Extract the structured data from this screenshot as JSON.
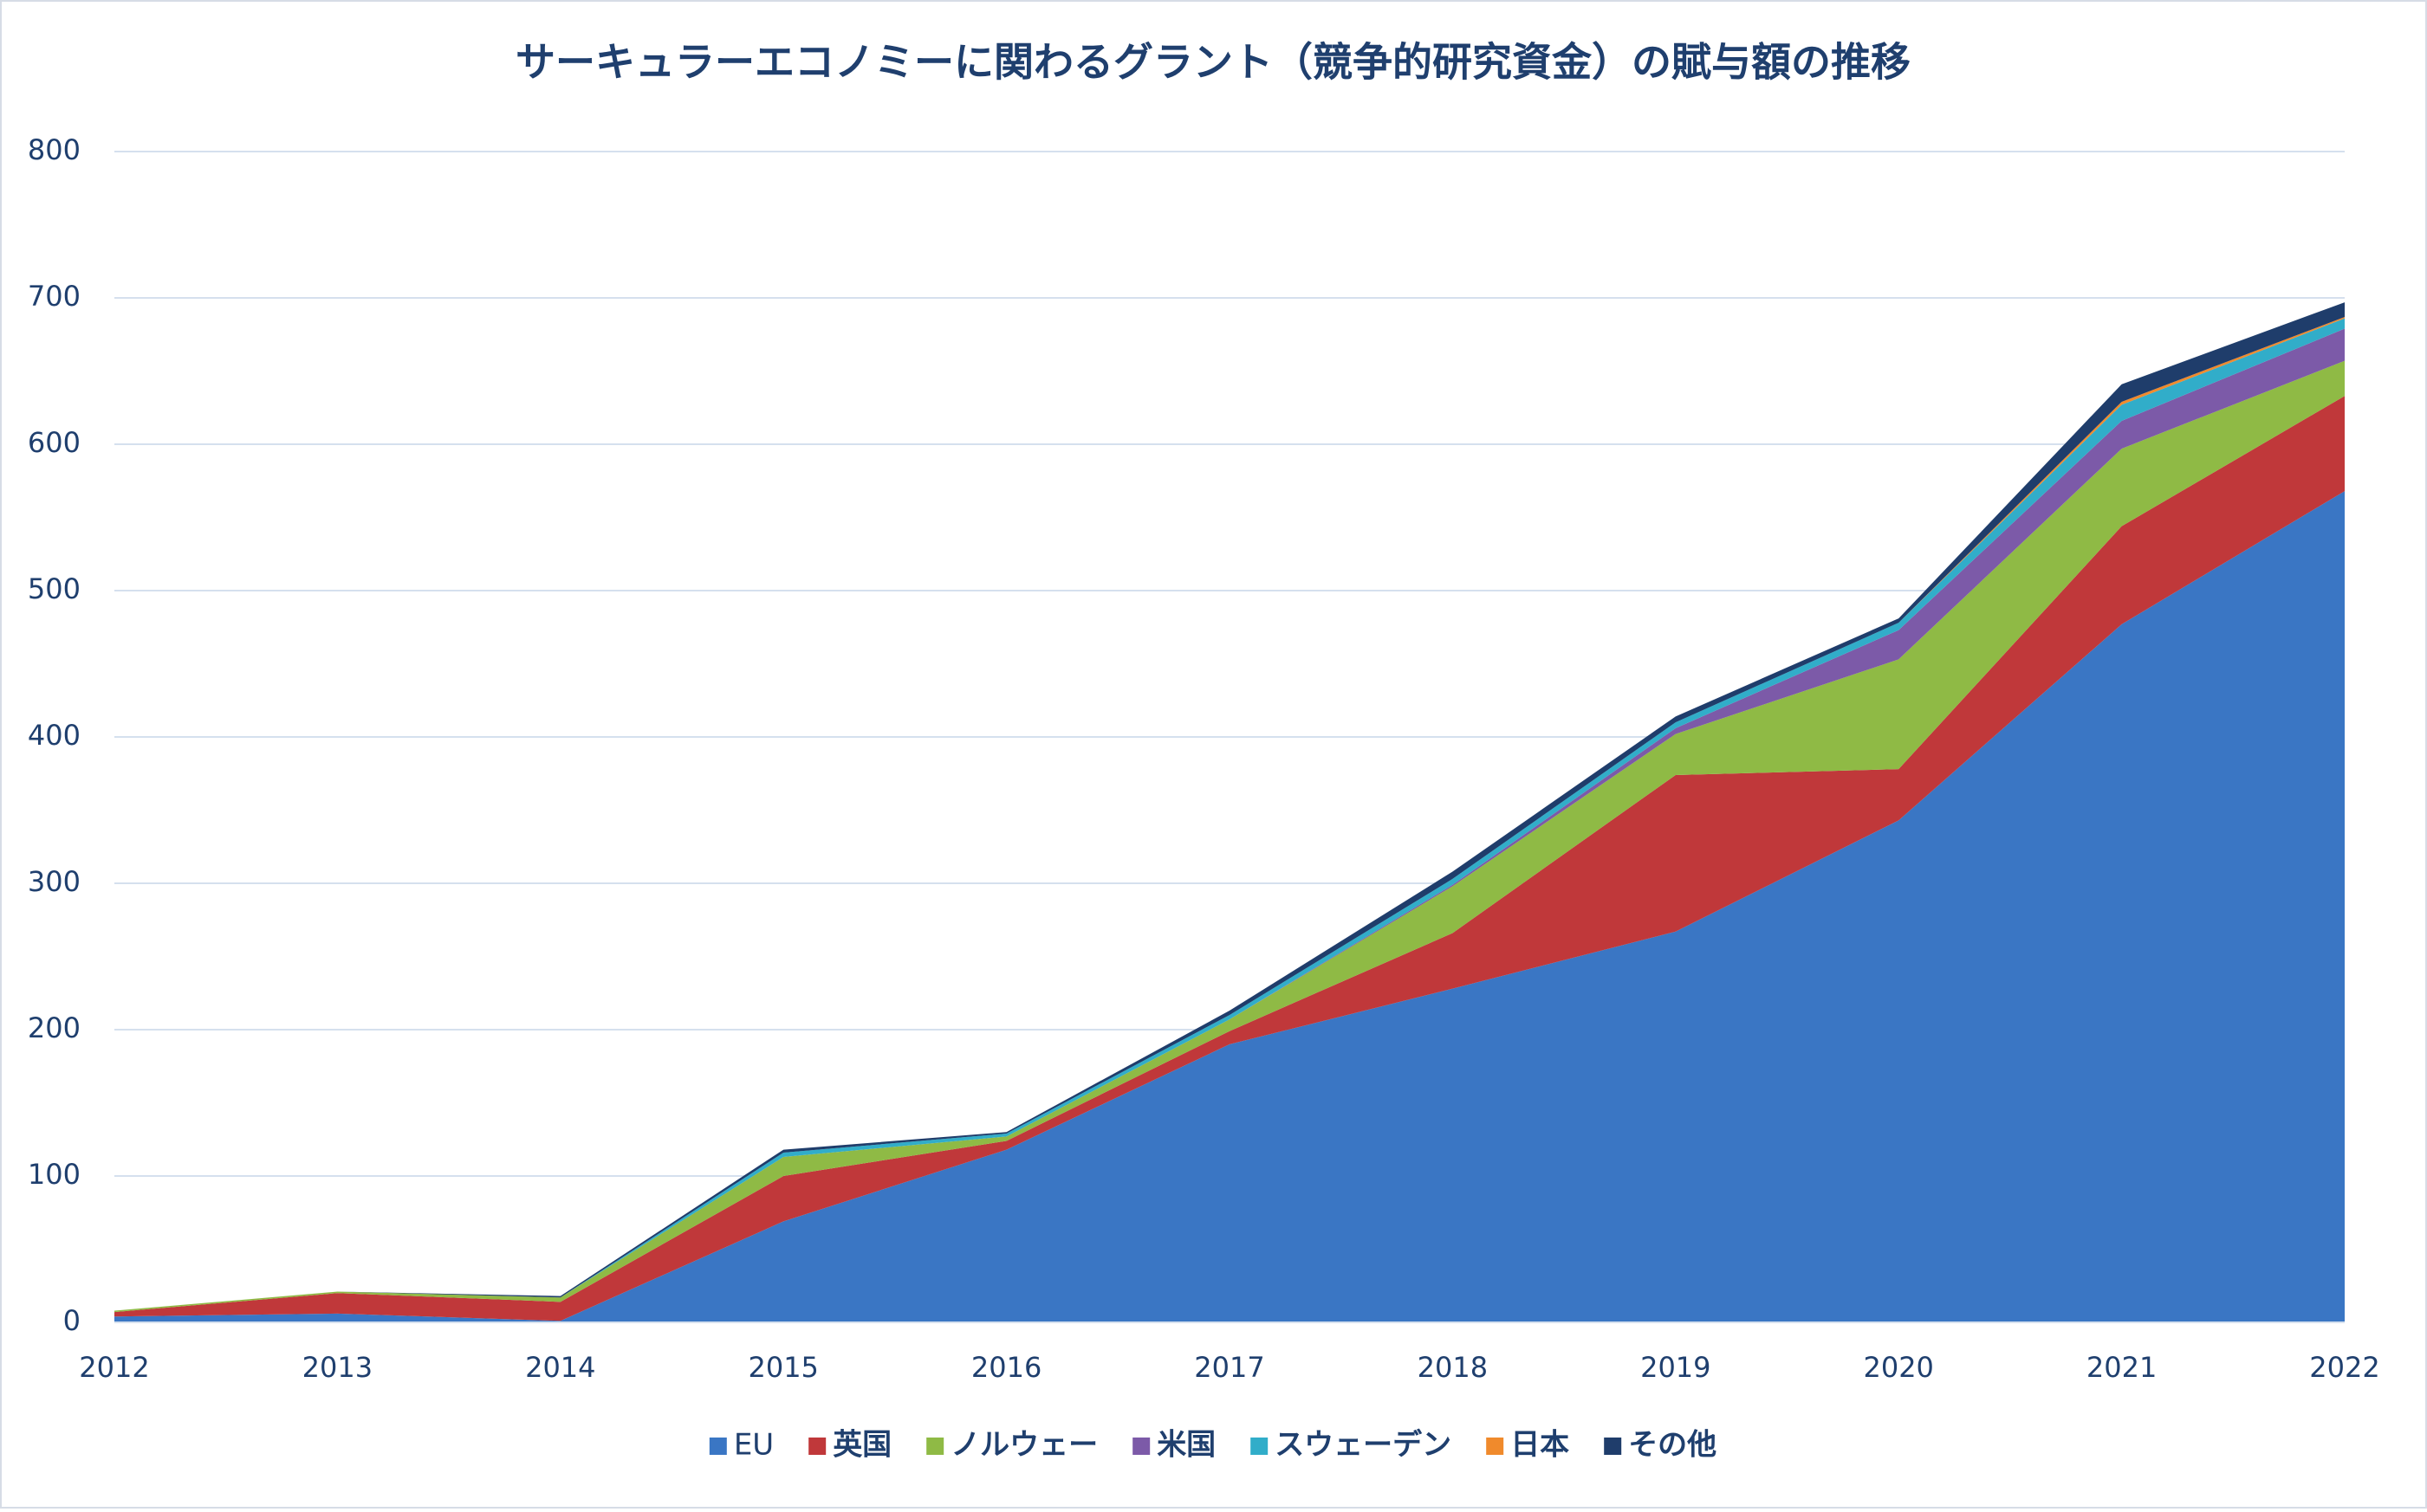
{
  "chart_data": {
    "type": "stacked_area",
    "title": "サーキュラーエコノミーに関わるグラント（競争的研究資金）の賦与額の推移",
    "categories": [
      "2012",
      "2013",
      "2014",
      "2015",
      "2016",
      "2017",
      "2018",
      "2019",
      "2020",
      "2021",
      "2022"
    ],
    "series": [
      {
        "name": "EU",
        "color": "#3a76c4",
        "values": [
          4,
          6,
          1,
          69,
          118,
          190,
          228,
          267,
          343,
          477,
          568
        ]
      },
      {
        "name": "英国",
        "color": "#c0383a",
        "values": [
          3,
          14,
          13,
          31,
          6,
          9,
          38,
          107,
          35,
          67,
          65
        ]
      },
      {
        "name": "ノルウェー",
        "color": "#8fba45",
        "values": [
          1,
          1,
          3,
          13,
          3,
          8,
          32,
          28,
          75,
          53,
          24
        ]
      },
      {
        "name": "米国",
        "color": "#7c5aa8",
        "values": [
          0,
          0,
          0,
          0,
          0,
          0,
          1,
          4,
          20,
          19,
          22
        ]
      },
      {
        "name": "スウェーデン",
        "color": "#31adc9",
        "values": [
          0,
          0,
          0,
          3,
          2,
          3,
          4,
          4,
          5,
          11,
          7
        ]
      },
      {
        "name": "日本",
        "color": "#f08a2c",
        "values": [
          0,
          0,
          0,
          0,
          0,
          0,
          0,
          0,
          0,
          2,
          1
        ]
      },
      {
        "name": "その他",
        "color": "#1f3d6b",
        "values": [
          0,
          0,
          1,
          2,
          1,
          3,
          5,
          4,
          3,
          12,
          10
        ]
      }
    ],
    "ylim": [
      0,
      800
    ],
    "yticks": [
      0,
      100,
      200,
      300,
      400,
      500,
      600,
      700,
      800
    ],
    "grid": true,
    "legend": "bottom"
  }
}
